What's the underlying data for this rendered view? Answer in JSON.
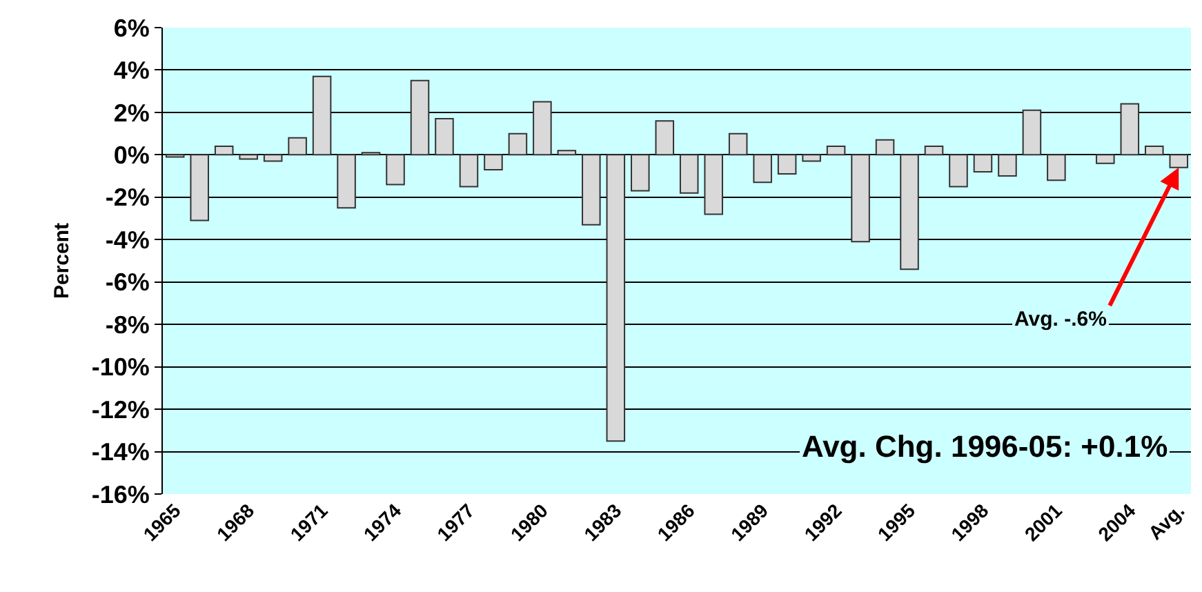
{
  "chart_data": {
    "type": "bar",
    "ylabel": "Percent",
    "categories": [
      "1965",
      null,
      null,
      "1968",
      null,
      null,
      "1971",
      null,
      null,
      "1974",
      null,
      null,
      "1977",
      null,
      null,
      "1980",
      null,
      null,
      "1983",
      null,
      null,
      "1986",
      null,
      null,
      "1989",
      null,
      null,
      "1992",
      null,
      null,
      "1995",
      null,
      null,
      "1998",
      null,
      null,
      "2001",
      null,
      null,
      "2004",
      null,
      "Avg."
    ],
    "values": [
      -0.1,
      -3.1,
      0.4,
      -0.2,
      -0.3,
      0.8,
      3.7,
      -2.5,
      0.1,
      -1.4,
      3.5,
      1.7,
      -1.5,
      -0.7,
      1.0,
      2.5,
      0.2,
      -3.3,
      -13.5,
      -1.7,
      1.6,
      -1.8,
      -2.8,
      1.0,
      -1.3,
      -0.9,
      -0.3,
      0.4,
      -4.1,
      0.7,
      -5.4,
      0.4,
      -1.5,
      -0.8,
      -1.0,
      2.1,
      -1.2,
      0.0,
      -0.4,
      2.4,
      0.4,
      -0.6
    ],
    "color": "#d9d9d9",
    "ylim": [
      -16,
      6
    ],
    "yticks": [
      {
        "value": -16,
        "label": "-16%"
      },
      {
        "value": -14,
        "label": "-14%"
      },
      {
        "value": -12,
        "label": "-12%"
      },
      {
        "value": -10,
        "label": "-10%"
      },
      {
        "value": -8,
        "label": "-8%"
      },
      {
        "value": -6,
        "label": "-6%"
      },
      {
        "value": -4,
        "label": "-4%"
      },
      {
        "value": -2,
        "label": "-2%"
      },
      {
        "value": 0,
        "label": "0%"
      },
      {
        "value": 2,
        "label": "2%"
      },
      {
        "value": 4,
        "label": "4%"
      },
      {
        "value": 6,
        "label": "6%"
      }
    ],
    "grid": "y",
    "annotations": [
      {
        "text": "Avg. -.6%",
        "x": "Avg.",
        "y": -0.6
      },
      "Avg. Chg. 1996-05: +0.1%"
    ]
  }
}
